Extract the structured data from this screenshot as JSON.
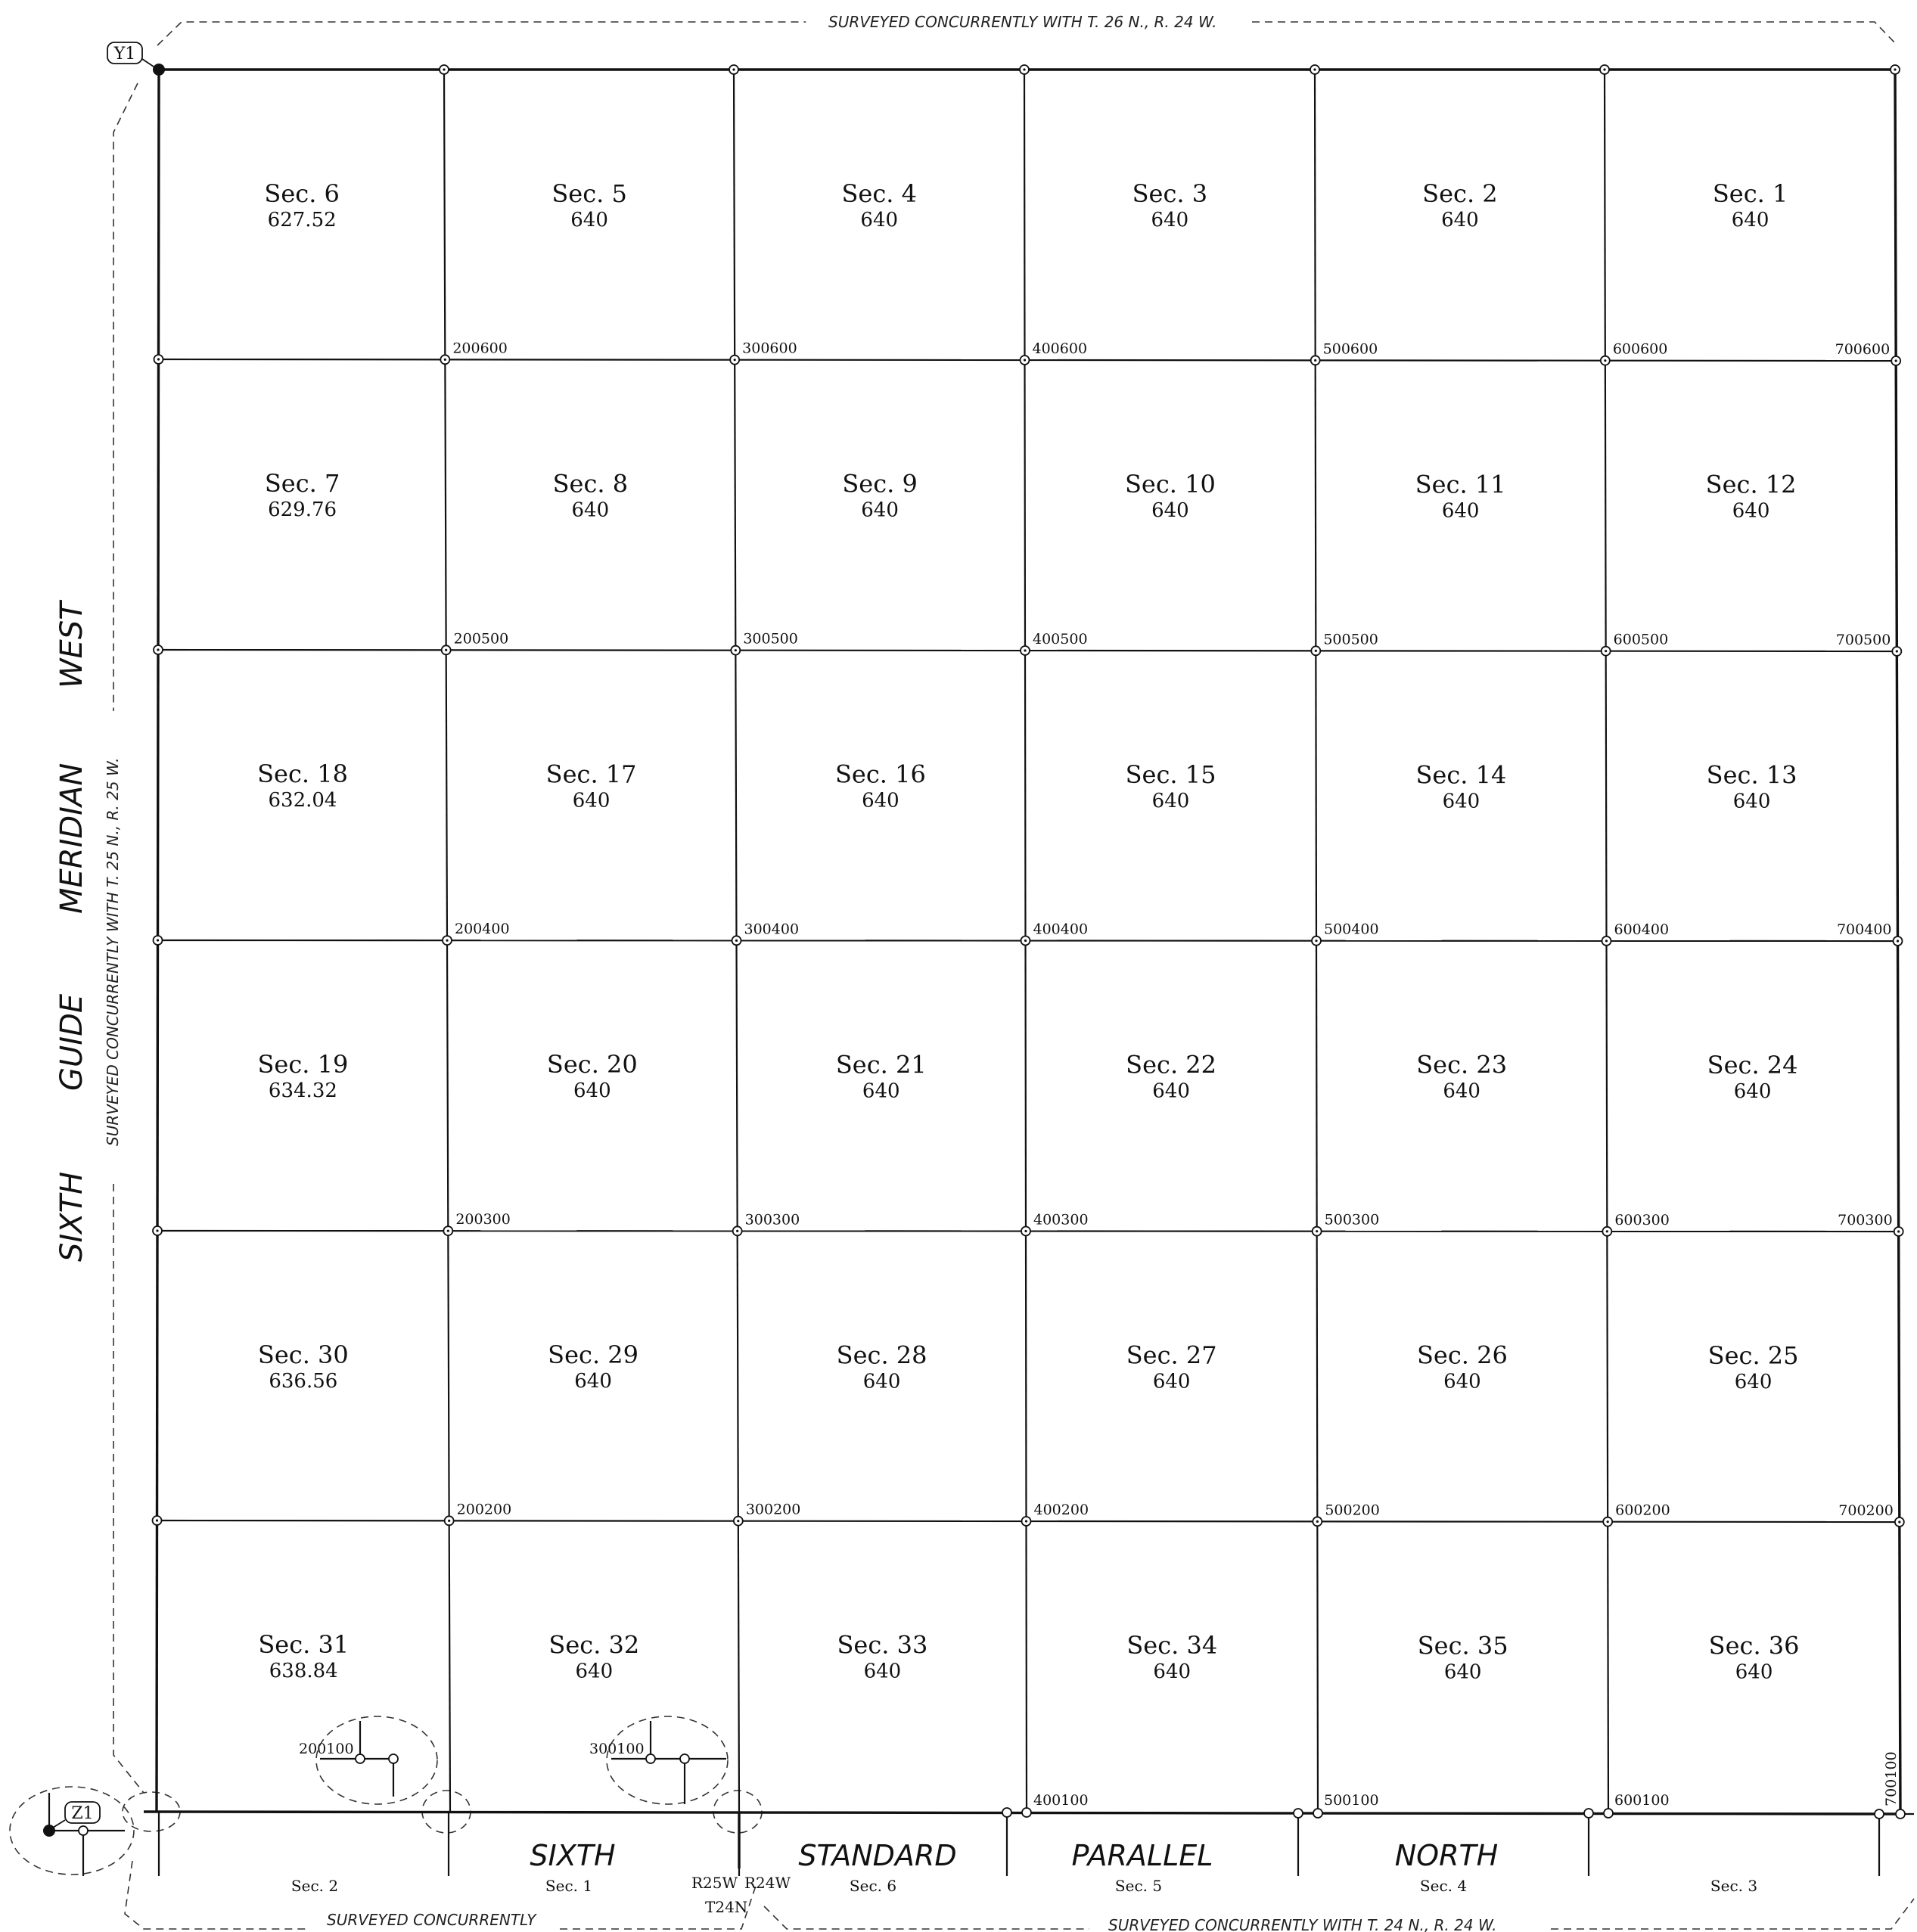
{
  "top_note": "SURVEYED CONCURRENTLY WITH T. 26 N., R. 24 W.",
  "left_note": "SURVEYED CONCURRENTLY WITH T. 25 N., R. 25 W.",
  "bottom_left_note": "SURVEYED CONCURRENTLY",
  "bottom_right_note": "SURVEYED CONCURRENTLY WITH T. 24 N., R. 24 W.",
  "meridian_words": [
    "WEST",
    "MERIDIAN",
    "GUIDE",
    "SIXTH"
  ],
  "parallel_words": [
    "SIXTH",
    "STANDARD",
    "PARALLEL",
    "NORTH"
  ],
  "corner_tags": {
    "nw": "Y1",
    "sw": "Z1"
  },
  "township_range": {
    "left_range": "R25W",
    "right_range": "R24W",
    "township": "T24N"
  },
  "sections": [
    [
      {
        "label": "Sec. 6",
        "acres": "627.52"
      },
      {
        "label": "Sec. 5",
        "acres": "640"
      },
      {
        "label": "Sec. 4",
        "acres": "640"
      },
      {
        "label": "Sec. 3",
        "acres": "640"
      },
      {
        "label": "Sec. 2",
        "acres": "640"
      },
      {
        "label": "Sec. 1",
        "acres": "640"
      }
    ],
    [
      {
        "label": "Sec. 7",
        "acres": "629.76"
      },
      {
        "label": "Sec. 8",
        "acres": "640"
      },
      {
        "label": "Sec. 9",
        "acres": "640"
      },
      {
        "label": "Sec. 10",
        "acres": "640"
      },
      {
        "label": "Sec. 11",
        "acres": "640"
      },
      {
        "label": "Sec. 12",
        "acres": "640"
      }
    ],
    [
      {
        "label": "Sec. 18",
        "acres": "632.04"
      },
      {
        "label": "Sec. 17",
        "acres": "640"
      },
      {
        "label": "Sec. 16",
        "acres": "640"
      },
      {
        "label": "Sec. 15",
        "acres": "640"
      },
      {
        "label": "Sec. 14",
        "acres": "640"
      },
      {
        "label": "Sec. 13",
        "acres": "640"
      }
    ],
    [
      {
        "label": "Sec. 19",
        "acres": "634.32"
      },
      {
        "label": "Sec. 20",
        "acres": "640"
      },
      {
        "label": "Sec. 21",
        "acres": "640"
      },
      {
        "label": "Sec. 22",
        "acres": "640"
      },
      {
        "label": "Sec. 23",
        "acres": "640"
      },
      {
        "label": "Sec. 24",
        "acres": "640"
      }
    ],
    [
      {
        "label": "Sec. 30",
        "acres": "636.56"
      },
      {
        "label": "Sec. 29",
        "acres": "640"
      },
      {
        "label": "Sec. 28",
        "acres": "640"
      },
      {
        "label": "Sec. 27",
        "acres": "640"
      },
      {
        "label": "Sec. 26",
        "acres": "640"
      },
      {
        "label": "Sec. 25",
        "acres": "640"
      }
    ],
    [
      {
        "label": "Sec. 31",
        "acres": "638.84"
      },
      {
        "label": "Sec. 32",
        "acres": "640"
      },
      {
        "label": "Sec. 33",
        "acres": "640"
      },
      {
        "label": "Sec. 34",
        "acres": "640"
      },
      {
        "label": "Sec. 35",
        "acres": "640"
      },
      {
        "label": "Sec. 36",
        "acres": "640"
      }
    ]
  ],
  "corner_ids": [
    [
      "200600",
      "300600",
      "400600",
      "500600",
      "600600",
      "700600"
    ],
    [
      "200500",
      "300500",
      "400500",
      "500500",
      "600500",
      "700500"
    ],
    [
      "200400",
      "300400",
      "400400",
      "500400",
      "600400",
      "700400"
    ],
    [
      "200300",
      "300300",
      "400300",
      "500300",
      "600300",
      "700300"
    ],
    [
      "200200",
      "300200",
      "400200",
      "500200",
      "600200",
      "700200"
    ]
  ],
  "bottom_corner_ids": [
    "200100",
    "300100",
    "400100",
    "500100",
    "600100",
    "700100"
  ],
  "adjoining_sections": [
    "Sec. 2",
    "Sec. 1",
    "Sec. 6",
    "Sec. 5",
    "Sec. 4",
    "Sec. 3"
  ]
}
